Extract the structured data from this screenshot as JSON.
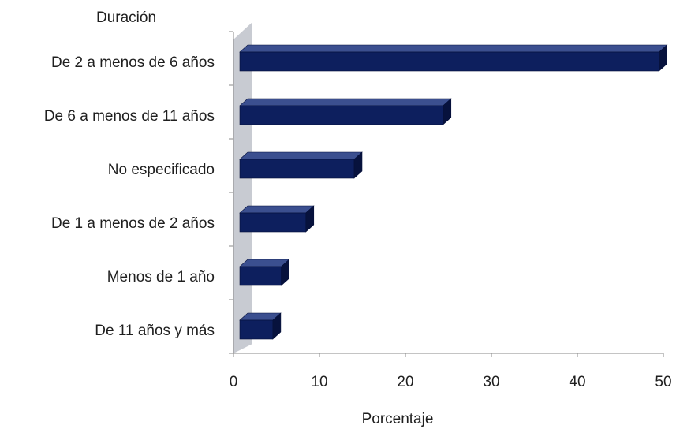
{
  "chart_data": {
    "type": "bar",
    "orientation": "horizontal",
    "style": "3d",
    "categories": [
      "De 2 a menos de 6 años",
      "De 6 a menos de 11 años",
      "No especificado",
      "De 1 a menos de 2 años",
      "Menos de 1 año",
      "De 11 años y más"
    ],
    "values": [
      49.5,
      24.0,
      13.5,
      7.8,
      4.9,
      3.9
    ],
    "xlabel": "Porcentaje",
    "ylabel": "Duración",
    "xlim": [
      0,
      50
    ],
    "xticks": [
      "0",
      "10",
      "20",
      "30",
      "40",
      "50"
    ],
    "grid": false,
    "legend": "none",
    "colors": {
      "bar_front": "#0d1f5e",
      "bar_top": "#3b4f8f",
      "bar_side": "#07123d",
      "wall": "#9aa0ad",
      "axis": "#8a8a8a"
    }
  }
}
